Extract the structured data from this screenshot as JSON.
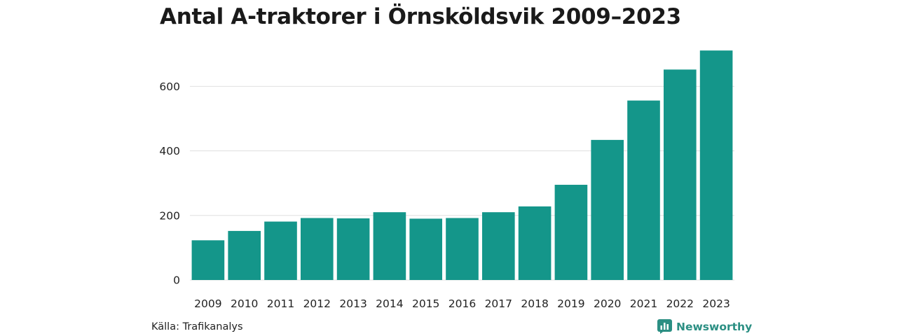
{
  "chart_data": {
    "type": "bar",
    "title": "Antal A-traktorer i Örnsköldsvik 2009–2023",
    "xlabel": "",
    "ylabel": "",
    "categories": [
      "2009",
      "2010",
      "2011",
      "2012",
      "2013",
      "2014",
      "2015",
      "2016",
      "2017",
      "2018",
      "2019",
      "2020",
      "2021",
      "2022",
      "2023"
    ],
    "values": [
      123,
      152,
      181,
      192,
      191,
      210,
      190,
      192,
      210,
      228,
      295,
      434,
      556,
      652,
      711
    ],
    "ylim": [
      0,
      720
    ],
    "yticks": [
      0,
      200,
      400,
      600
    ],
    "grid": true,
    "bar_color": "#14968a",
    "grid_color": "#e0e0e0"
  },
  "footer": {
    "source": "Källa: Trafikanalys",
    "brand": "Newsworthy",
    "brand_icon": "newsworthy-logo-icon",
    "brand_color": "#2b8f83"
  }
}
